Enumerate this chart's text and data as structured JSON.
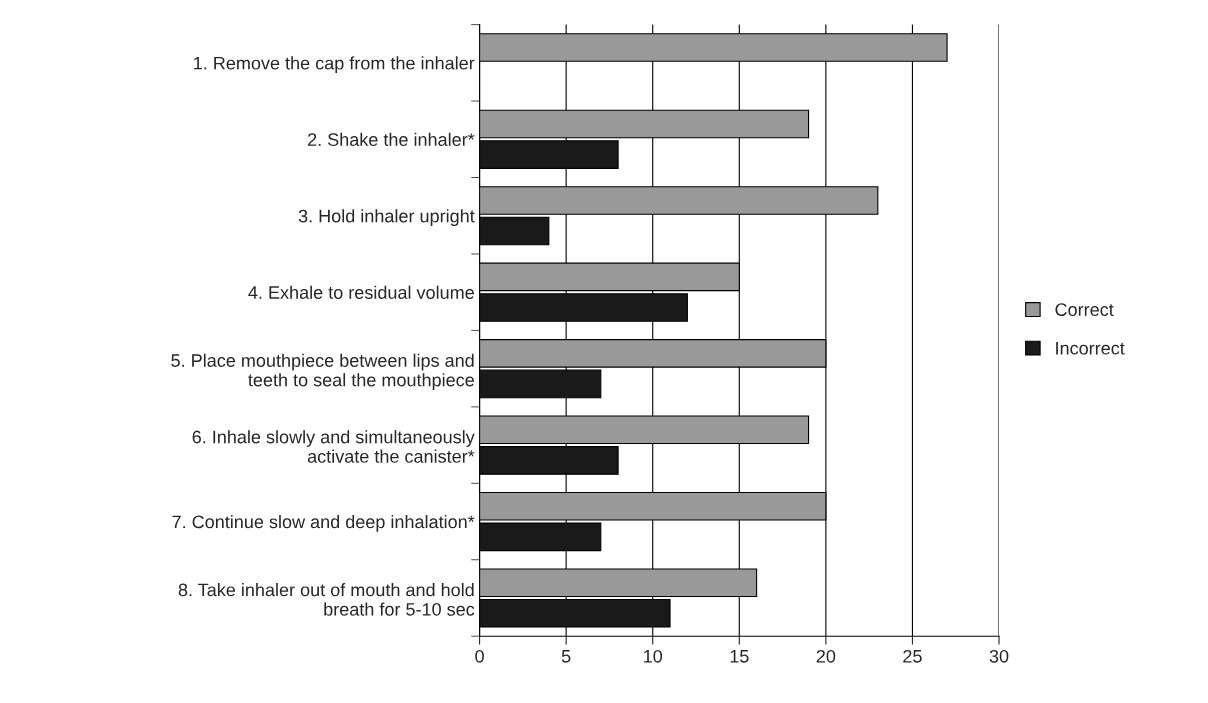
{
  "chart_data": {
    "type": "bar",
    "orientation": "horizontal",
    "categories": [
      "1. Remove the cap from the inhaler",
      "2. Shake the inhaler*",
      "3. Hold inhaler upright",
      "4. Exhale to residual volume",
      "5. Place mouthpiece between lips and\nteeth to seal the mouthpiece",
      "6. Inhale slowly and simultaneously\nactivate the canister*",
      "7. Continue slow and deep inhalation*",
      "8. Take inhaler out of mouth and hold\nbreath for 5-10 sec"
    ],
    "series": [
      {
        "name": "Correct",
        "color": "#999999",
        "values": [
          27,
          19,
          23,
          15,
          20,
          19,
          20,
          16
        ]
      },
      {
        "name": "Incorrect",
        "color": "#1a1a1a",
        "values": [
          null,
          8,
          4,
          12,
          7,
          8,
          7,
          11
        ]
      }
    ],
    "xlim": [
      0,
      30
    ],
    "xticks": [
      0,
      5,
      10,
      15,
      20,
      25,
      30
    ],
    "grid": "x",
    "legend": "right"
  }
}
